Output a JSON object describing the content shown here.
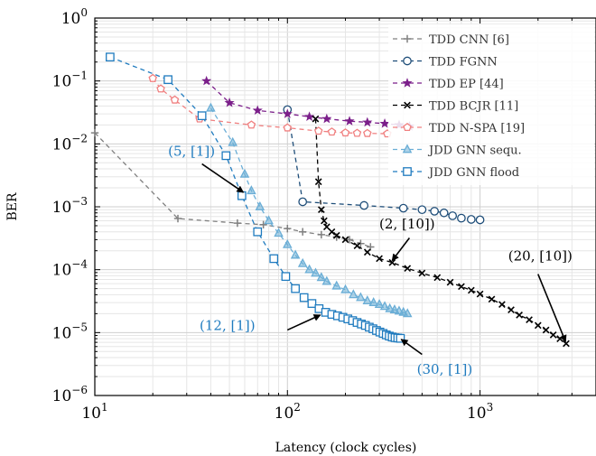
{
  "chart_data": {
    "type": "line",
    "title": "",
    "xlabel": "Latency (clock cycles)",
    "ylabel": "BER",
    "x_scale": "log",
    "y_scale": "log",
    "xlim": [
      10,
      4000
    ],
    "ylim": [
      1e-06,
      1
    ],
    "grid": true,
    "legend_position": "top-right",
    "x_ticks": [
      {
        "value": 10,
        "base": "10",
        "exp": "1"
      },
      {
        "value": 100,
        "base": "10",
        "exp": "2"
      },
      {
        "value": 1000,
        "base": "10",
        "exp": "3"
      }
    ],
    "y_ticks": [
      {
        "value": 1,
        "base": "10",
        "exp": "0"
      },
      {
        "value": 0.1,
        "base": "10",
        "exp": "−1"
      },
      {
        "value": 0.01,
        "base": "10",
        "exp": "−2"
      },
      {
        "value": 0.001,
        "base": "10",
        "exp": "−3"
      },
      {
        "value": 0.0001,
        "base": "10",
        "exp": "−4"
      },
      {
        "value": 1e-05,
        "base": "10",
        "exp": "−5"
      },
      {
        "value": 1e-06,
        "base": "10",
        "exp": "−6"
      }
    ],
    "series": [
      {
        "name": "TDD CNN [6]",
        "color": "#808080",
        "marker": "plus",
        "dash": true,
        "points": [
          [
            10,
            0.015
          ],
          [
            27,
            0.00065
          ],
          [
            55,
            0.00055
          ],
          [
            75,
            0.00052
          ],
          [
            100,
            0.00045
          ],
          [
            120,
            0.0004
          ],
          [
            150,
            0.00036
          ],
          [
            180,
            0.00033
          ],
          [
            210,
            0.0003
          ],
          [
            240,
            0.00026
          ],
          [
            270,
            0.00023
          ]
        ]
      },
      {
        "name": "TDD FGNN",
        "color": "#1f4e79",
        "marker": "circle",
        "dash": true,
        "points": [
          [
            100,
            0.035
          ],
          [
            120,
            0.0012
          ],
          [
            250,
            0.00105
          ],
          [
            400,
            0.00095
          ],
          [
            500,
            0.0009
          ],
          [
            580,
            0.00085
          ],
          [
            650,
            0.0008
          ],
          [
            720,
            0.00072
          ],
          [
            800,
            0.00066
          ],
          [
            900,
            0.00063
          ],
          [
            1000,
            0.00062
          ]
        ]
      },
      {
        "name": "TDD EP [44]",
        "color": "#7b1f8a",
        "marker": "star",
        "dash": true,
        "points": [
          [
            38,
            0.1
          ],
          [
            50,
            0.045
          ],
          [
            70,
            0.034
          ],
          [
            100,
            0.03
          ],
          [
            130,
            0.027
          ],
          [
            160,
            0.025
          ],
          [
            210,
            0.023
          ],
          [
            260,
            0.022
          ],
          [
            320,
            0.021
          ],
          [
            380,
            0.02
          ],
          [
            430,
            0.019
          ]
        ]
      },
      {
        "name": "TDD BCJR [11]",
        "color": "#000000",
        "marker": "x",
        "dash": true,
        "points": [
          [
            140,
            0.025
          ],
          [
            145,
            0.0025
          ],
          [
            150,
            0.0009
          ],
          [
            155,
            0.0006
          ],
          [
            160,
            0.00048
          ],
          [
            170,
            0.0004
          ],
          [
            180,
            0.00035
          ],
          [
            200,
            0.0003
          ],
          [
            230,
            0.00024
          ],
          [
            260,
            0.00019
          ],
          [
            300,
            0.00015
          ],
          [
            350,
            0.00013
          ],
          [
            420,
            0.000105
          ],
          [
            500,
            8.8e-05
          ],
          [
            600,
            7.5e-05
          ],
          [
            700,
            6.3e-05
          ],
          [
            800,
            5.4e-05
          ],
          [
            900,
            4.7e-05
          ],
          [
            1000,
            4.1e-05
          ],
          [
            1150,
            3.4e-05
          ],
          [
            1300,
            2.8e-05
          ],
          [
            1450,
            2.3e-05
          ],
          [
            1600,
            1.9e-05
          ],
          [
            1800,
            1.6e-05
          ],
          [
            2000,
            1.3e-05
          ],
          [
            2200,
            1.1e-05
          ],
          [
            2400,
            9.2e-06
          ],
          [
            2600,
            8e-06
          ],
          [
            2800,
            6.7e-06
          ]
        ]
      },
      {
        "name": "TDD N-SPA [19]",
        "color": "#f08080",
        "marker": "pentagon",
        "dash": true,
        "points": [
          [
            20,
            0.11
          ],
          [
            22,
            0.075
          ],
          [
            26,
            0.05
          ],
          [
            35,
            0.025
          ],
          [
            65,
            0.02
          ],
          [
            100,
            0.018
          ],
          [
            145,
            0.016
          ],
          [
            170,
            0.0155
          ],
          [
            200,
            0.015
          ],
          [
            230,
            0.0148
          ],
          [
            260,
            0.0147
          ],
          [
            330,
            0.0145
          ]
        ]
      },
      {
        "name": "JDD GNN sequ.",
        "color": "#6baed6",
        "marker": "triangle",
        "dash": true,
        "points": [
          [
            40,
            0.037
          ],
          [
            52,
            0.0105
          ],
          [
            60,
            0.0033
          ],
          [
            65,
            0.0018
          ],
          [
            72,
            0.001
          ],
          [
            80,
            0.0006
          ],
          [
            90,
            0.00038
          ],
          [
            100,
            0.00025
          ],
          [
            110,
            0.00017
          ],
          [
            120,
            0.000125
          ],
          [
            130,
            0.0001
          ],
          [
            140,
            8.8e-05
          ],
          [
            150,
            7.5e-05
          ],
          [
            160,
            6.5e-05
          ],
          [
            180,
            5.5e-05
          ],
          [
            200,
            4.8e-05
          ],
          [
            220,
            4e-05
          ],
          [
            240,
            3.6e-05
          ],
          [
            260,
            3.2e-05
          ],
          [
            280,
            3e-05
          ],
          [
            300,
            2.8e-05
          ],
          [
            320,
            2.6e-05
          ],
          [
            340,
            2.4e-05
          ],
          [
            360,
            2.3e-05
          ],
          [
            380,
            2.2e-05
          ],
          [
            400,
            2.1e-05
          ],
          [
            420,
            2e-05
          ]
        ]
      },
      {
        "name": "JDD GNN flood",
        "color": "#1f7bbf",
        "marker": "square",
        "dash": true,
        "points": [
          [
            12,
            0.24
          ],
          [
            24,
            0.105
          ],
          [
            36,
            0.028
          ],
          [
            48,
            0.0065
          ],
          [
            58,
            0.0015
          ],
          [
            70,
            0.0004
          ],
          [
            85,
            0.00015
          ],
          [
            98,
            7.8e-05
          ],
          [
            110,
            5e-05
          ],
          [
            122,
            3.6e-05
          ],
          [
            134,
            2.9e-05
          ],
          [
            146,
            2.4e-05
          ],
          [
            158,
            2.1e-05
          ],
          [
            170,
            1.95e-05
          ],
          [
            182,
            1.85e-05
          ],
          [
            194,
            1.75e-05
          ],
          [
            206,
            1.65e-05
          ],
          [
            218,
            1.55e-05
          ],
          [
            230,
            1.45e-05
          ],
          [
            242,
            1.37e-05
          ],
          [
            254,
            1.3e-05
          ],
          [
            266,
            1.22e-05
          ],
          [
            278,
            1.15e-05
          ],
          [
            290,
            1.08e-05
          ],
          [
            302,
            1.02e-05
          ],
          [
            314,
            9.7e-06
          ],
          [
            326,
            9.2e-06
          ],
          [
            338,
            8.8e-06
          ],
          [
            350,
            8.5e-06
          ],
          [
            362,
            8.3e-06
          ],
          [
            374,
            8.2e-06
          ],
          [
            386,
            8.1e-06
          ]
        ]
      }
    ],
    "annotations": [
      {
        "text": "(5, [1])",
        "color": "#1f7bbf",
        "label_at": [
          24,
          0.0065
        ],
        "arrow_from": [
          36,
          0.0048
        ],
        "arrow_to": [
          59,
          0.0017
        ]
      },
      {
        "text": "(12, [1])",
        "color": "#1f7bbf",
        "label_at": [
          35,
          1.1e-05
        ],
        "arrow_from": [
          100,
          1.1e-05
        ],
        "arrow_to": [
          148,
          1.9e-05
        ]
      },
      {
        "text": "(30, [1])",
        "color": "#1f7bbf",
        "label_at": [
          470,
          2.2e-06
        ],
        "arrow_from": [
          500,
          4.5e-06
        ],
        "arrow_to": [
          390,
          7.8e-06
        ]
      },
      {
        "text": "(2, [10])",
        "color": "#000000",
        "label_at": [
          300,
          0.00045
        ],
        "arrow_from": [
          430,
          0.00032
        ],
        "arrow_to": [
          350,
          0.00014
        ]
      },
      {
        "text": "(20, [10])",
        "color": "#000000",
        "label_at": [
          1400,
          0.00014
        ],
        "arrow_from": [
          2000,
          8.5e-05
        ],
        "arrow_to": [
          2780,
          7.2e-06
        ]
      }
    ]
  }
}
